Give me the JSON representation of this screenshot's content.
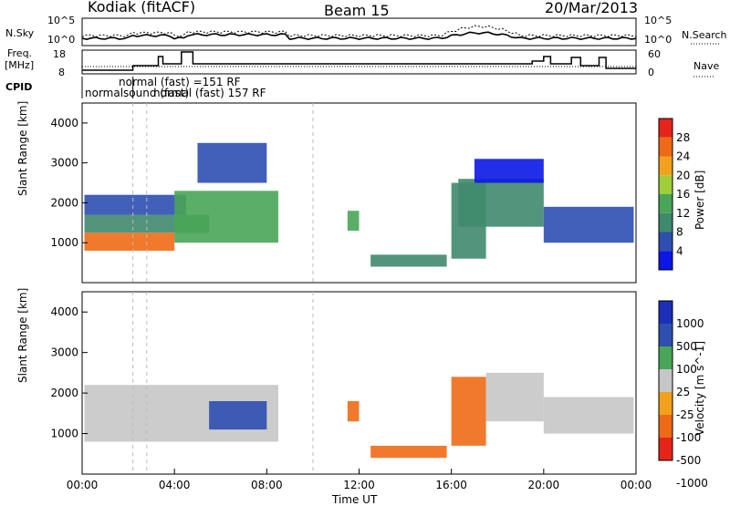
{
  "header": {
    "station": "Kodiak (fitACF)",
    "beam": "Beam 15",
    "date": "20/Mar/2013"
  },
  "noise_panel": {
    "left_label": "N.Sky",
    "right_label": "N.Search",
    "left_ticks": [
      "10^5",
      "10^0"
    ],
    "right_ticks": [
      "10^5",
      "10^0"
    ]
  },
  "freq_panel": {
    "left_label_top": "Freq.",
    "left_label_unit": "[MHz]",
    "right_label": "Nave",
    "left_ticks": [
      "18",
      "8"
    ],
    "right_ticks": [
      "60",
      "0"
    ]
  },
  "cpid": {
    "label": "CPID",
    "text_upper": "normal (fast) =151 RF",
    "text_lower": "normalsound (fast)",
    "text_overlap": "normal (fast) 157 RF"
  },
  "time_axis": {
    "label": "Time UT",
    "ticks": [
      "00:00",
      "04:00",
      "08:00",
      "12:00",
      "16:00",
      "20:00",
      "00:00"
    ]
  },
  "colors": {
    "power": [
      "#0a17e6",
      "#2e4fb0",
      "#3f8a6e",
      "#49a557",
      "#9fce3a",
      "#f2a11c",
      "#ee6a16",
      "#e5241a"
    ],
    "velocity": [
      "#e5241a",
      "#ee6a16",
      "#f2a11c",
      "#c6c6c6",
      "#49a557",
      "#2e4fb0",
      "#1b2fb8"
    ]
  },
  "chart_data": [
    {
      "type": "heatmap",
      "title": "Power",
      "xlabel": "Time UT",
      "ylabel": "Slant Range [km]",
      "ylim": [
        0,
        4500
      ],
      "yticks": [
        1000,
        2000,
        3000,
        4000
      ],
      "colorbar": {
        "label": "Power [dB]",
        "ticks": [
          "4",
          "8",
          "12",
          "16",
          "20",
          "24",
          "28"
        ]
      },
      "regions": [
        {
          "t0": 0.1,
          "t1": 4.0,
          "r0": 800,
          "r1": 1250,
          "value": 26
        },
        {
          "t0": 0.1,
          "t1": 5.5,
          "r0": 1250,
          "r1": 1700,
          "value": 12
        },
        {
          "t0": 0.1,
          "t1": 4.5,
          "r0": 1700,
          "r1": 2200,
          "value": 9
        },
        {
          "t0": 4.0,
          "t1": 8.5,
          "r0": 1000,
          "r1": 2300,
          "value": 16
        },
        {
          "t0": 5.0,
          "t1": 8.0,
          "r0": 2500,
          "r1": 3500,
          "value": 6
        },
        {
          "t0": 11.5,
          "t1": 12.0,
          "r0": 1300,
          "r1": 1800,
          "value": 14
        },
        {
          "t0": 12.5,
          "t1": 15.8,
          "r0": 400,
          "r1": 700,
          "value": 10
        },
        {
          "t0": 16.0,
          "t1": 17.5,
          "r0": 600,
          "r1": 2500,
          "value": 12
        },
        {
          "t0": 16.3,
          "t1": 20.0,
          "r0": 1400,
          "r1": 2600,
          "value": 10
        },
        {
          "t0": 17.0,
          "t1": 20.0,
          "r0": 2500,
          "r1": 3100,
          "value": 5
        },
        {
          "t0": 20.0,
          "t1": 23.9,
          "r0": 1000,
          "r1": 1900,
          "value": 8
        }
      ]
    },
    {
      "type": "heatmap",
      "title": "Velocity",
      "xlabel": "Time UT",
      "ylabel": "Slant Range [km]",
      "ylim": [
        0,
        4500
      ],
      "yticks": [
        1000,
        2000,
        3000,
        4000
      ],
      "colorbar": {
        "label": "Velocity [m s^-1]",
        "ticks": [
          "1000",
          "500",
          "100",
          "25",
          "-25",
          "-100",
          "-500",
          "-1000"
        ]
      },
      "regions": [
        {
          "t0": 0.1,
          "t1": 8.5,
          "r0": 800,
          "r1": 2200,
          "value": 0
        },
        {
          "t0": 5.5,
          "t1": 8.0,
          "r0": 1100,
          "r1": 1800,
          "value": 200
        },
        {
          "t0": 11.5,
          "t1": 12.0,
          "r0": 1300,
          "r1": 1800,
          "value": -300
        },
        {
          "t0": 12.5,
          "t1": 15.8,
          "r0": 400,
          "r1": 700,
          "value": -300
        },
        {
          "t0": 16.0,
          "t1": 17.5,
          "r0": 700,
          "r1": 2400,
          "value": -300
        },
        {
          "t0": 17.5,
          "t1": 20.0,
          "r0": 1300,
          "r1": 2500,
          "value": 0
        },
        {
          "t0": 20.0,
          "t1": 23.9,
          "r0": 1000,
          "r1": 1900,
          "value": 0
        }
      ]
    }
  ]
}
